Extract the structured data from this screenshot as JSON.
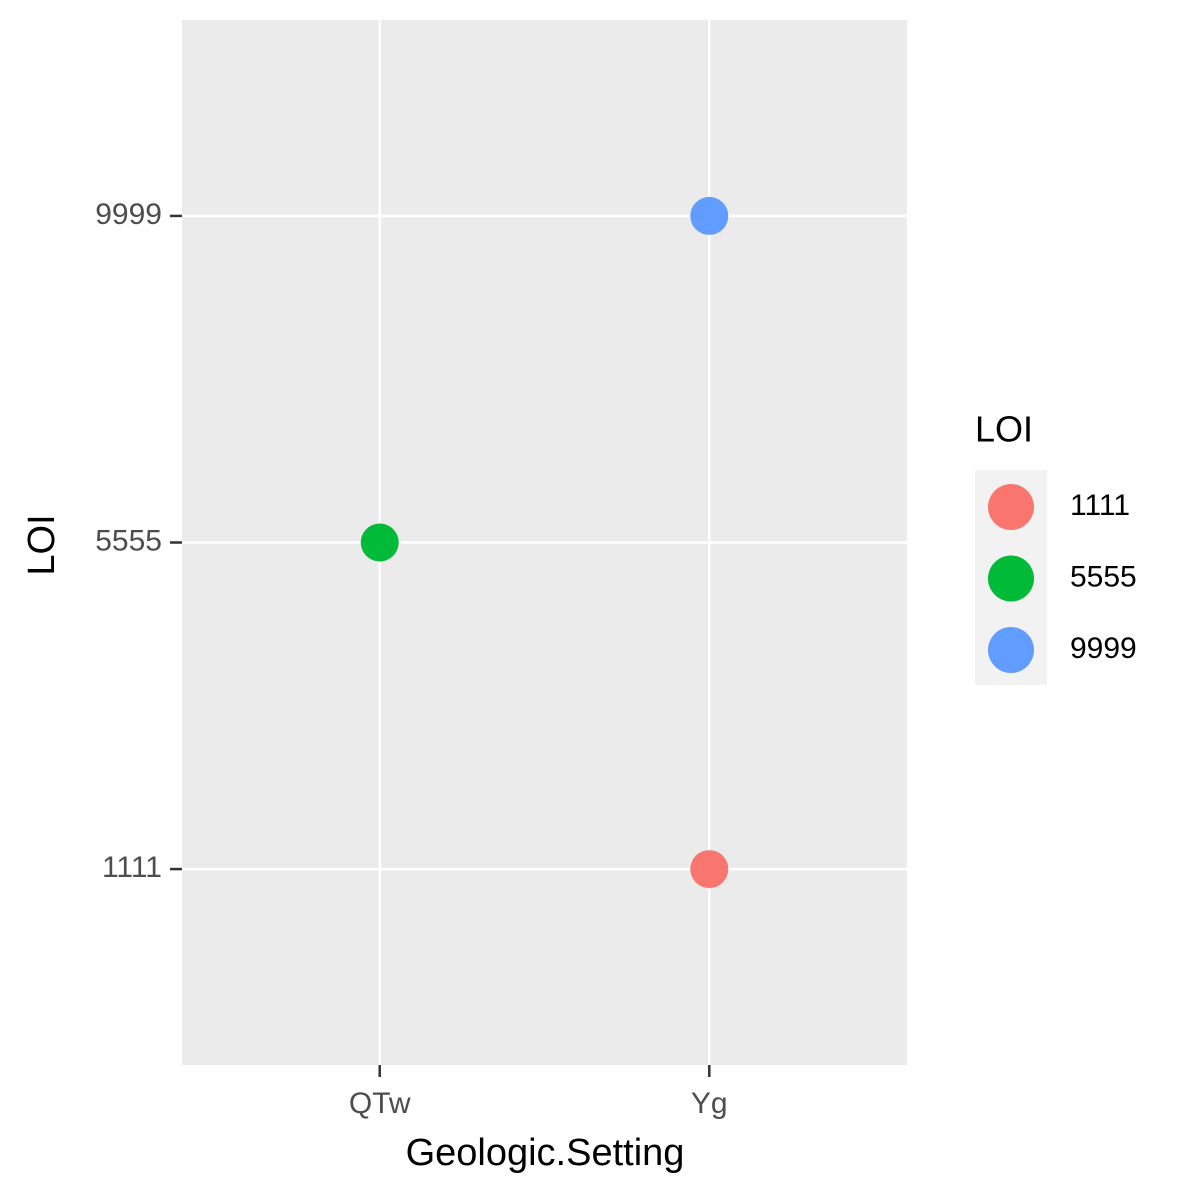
{
  "chart_data": {
    "type": "scatter",
    "x_label": "Geologic.Setting",
    "y_label": "LOI",
    "legend_title": "LOI",
    "categories": [
      "QTw",
      "Yg"
    ],
    "series": [
      {
        "name": "1111",
        "color": "#F8766D",
        "x": [
          "Yg"
        ],
        "values": [
          1111
        ]
      },
      {
        "name": "5555",
        "color": "#00BA38",
        "x": [
          "QTw"
        ],
        "values": [
          5555
        ]
      },
      {
        "name": "9999",
        "color": "#619CFF",
        "x": [
          "Yg"
        ],
        "values": [
          9999
        ]
      }
    ],
    "ylim": [
      -1555,
      12665
    ],
    "yticks": [
      1111,
      5555,
      9999
    ],
    "grid": true,
    "legend": "right"
  }
}
